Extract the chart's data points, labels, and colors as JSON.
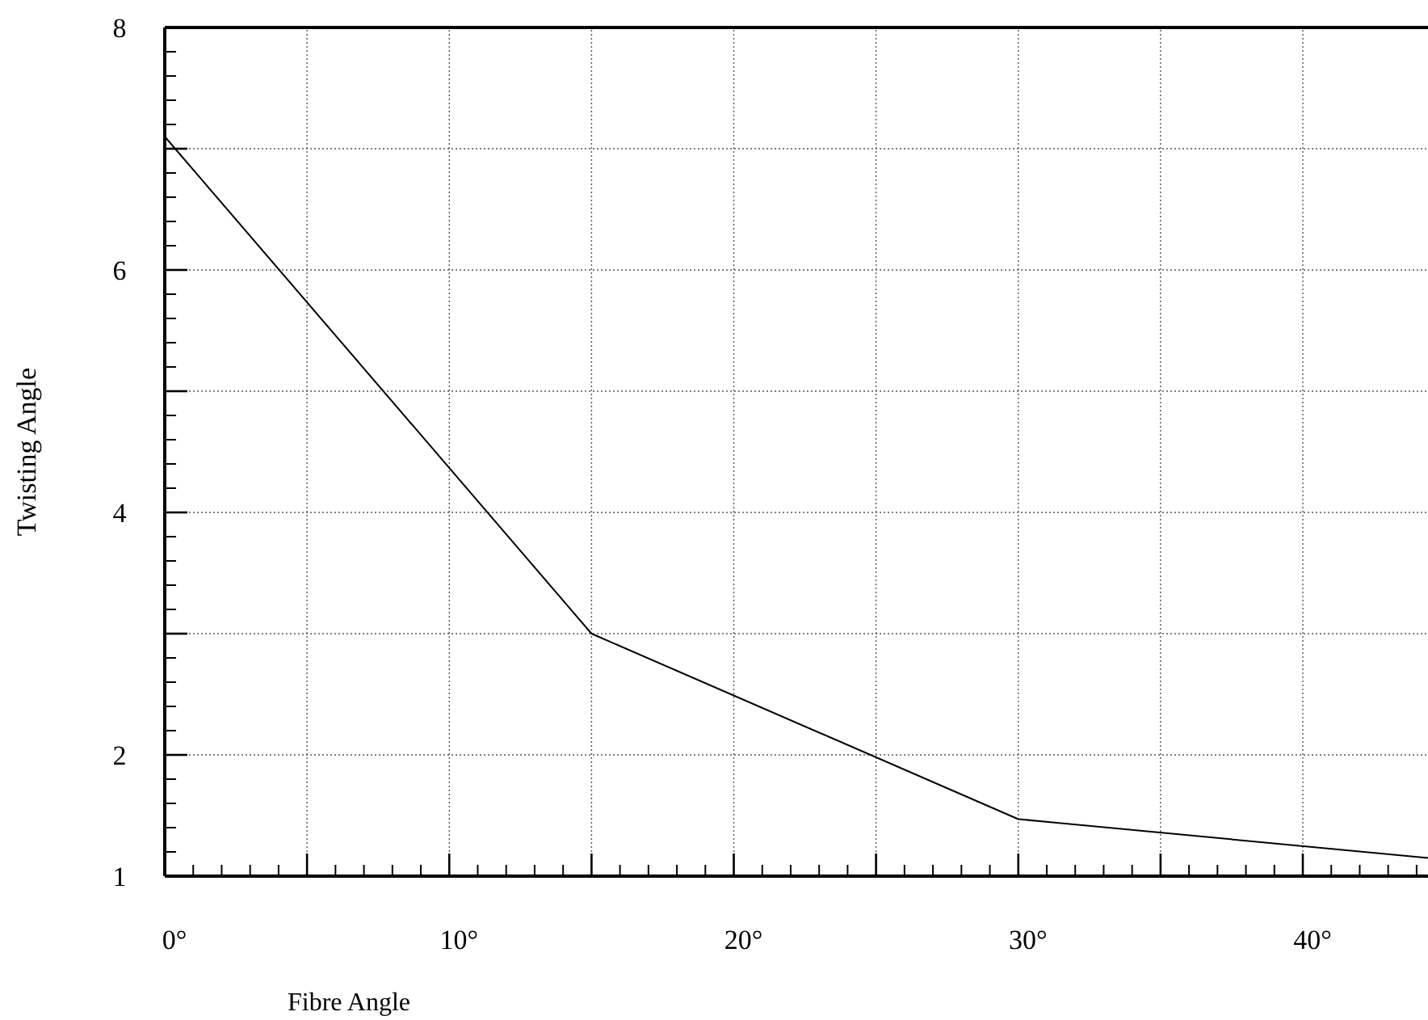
{
  "chart_data": {
    "type": "line",
    "xlabel": "Fibre Angle",
    "ylabel": "Twisting Angle",
    "x": [
      0,
      15,
      30,
      44.4
    ],
    "series": [
      {
        "color": "#000000",
        "values": [
          7.1,
          3.0,
          1.47,
          1.15
        ]
      }
    ],
    "xlim": [
      0,
      44.4
    ],
    "ylim": [
      1,
      8
    ],
    "xticks": [
      {
        "value": 0,
        "label": "0°"
      },
      {
        "value": 5,
        "label": null
      },
      {
        "value": 10,
        "label": "10°"
      },
      {
        "value": 15,
        "label": null
      },
      {
        "value": 20,
        "label": "20°"
      },
      {
        "value": 25,
        "label": null
      },
      {
        "value": 30,
        "label": "30°"
      },
      {
        "value": 35,
        "label": null
      },
      {
        "value": 40,
        "label": "40°"
      }
    ],
    "yticks": [
      1,
      2,
      {
        "value": 3,
        "label": null
      },
      4,
      {
        "value": 5,
        "label": null
      },
      6,
      {
        "value": 7,
        "label": null
      },
      8
    ],
    "grid": true,
    "marker": "none",
    "line_style": "solid"
  }
}
